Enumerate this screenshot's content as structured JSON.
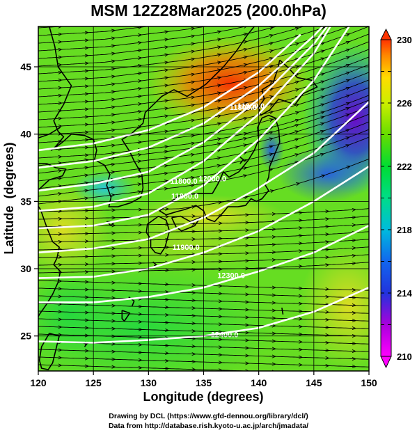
{
  "title": "MSM 12Z28Mar2025 (200.0hPa)",
  "map": {
    "xlabel": "Longitude (degrees)",
    "ylabel": "Latitude  (degrees)",
    "lon_range": [
      120,
      150
    ],
    "lat_range": [
      22.4,
      48
    ],
    "lon_ticks": [
      "120",
      "125",
      "130",
      "135",
      "140",
      "145",
      "150"
    ],
    "lat_ticks": [
      "25",
      "30",
      "35",
      "40",
      "45"
    ],
    "grid": true,
    "field": "temperature (shaded)",
    "wind": "streamlines with arrows",
    "contour_labels": [
      {
        "text": "11800.0",
        "lon": 133.2,
        "lat": 36.3
      },
      {
        "text": "11800.0",
        "lon": 133.3,
        "lat": 35.2
      },
      {
        "text": "11900.0",
        "lon": 133.4,
        "lat": 31.4
      },
      {
        "text": "12000.0",
        "lon": 135.8,
        "lat": 36.5
      },
      {
        "text": "11800.0",
        "lon": 138.6,
        "lat": 41.8
      },
      {
        "text": "11900.0",
        "lon": 139.3,
        "lat": 41.9
      },
      {
        "text": "12300.0",
        "lon": 137.5,
        "lat": 29.3
      },
      {
        "text": "12400.0",
        "lon": 136.9,
        "lat": 24.9
      }
    ]
  },
  "colorbar": {
    "min": 210,
    "max": 230,
    "tick_labels": [
      "230",
      "226",
      "222",
      "218",
      "214",
      "210"
    ],
    "colors": [
      "#ff00ff",
      "#aa00dd",
      "#2233dd",
      "#1166ee",
      "#00bbdd",
      "#00dd88",
      "#00dd33",
      "#66dd00",
      "#ccee00",
      "#ffdd00",
      "#ff8800",
      "#ff3300"
    ]
  },
  "credits": {
    "line1": "Drawing by DCL (https://www.gfd-dennou.org/library/dcl/)",
    "line2": "Data from http://database.rish.kyoto-u.ac.jp/arch/jmadata/"
  }
}
